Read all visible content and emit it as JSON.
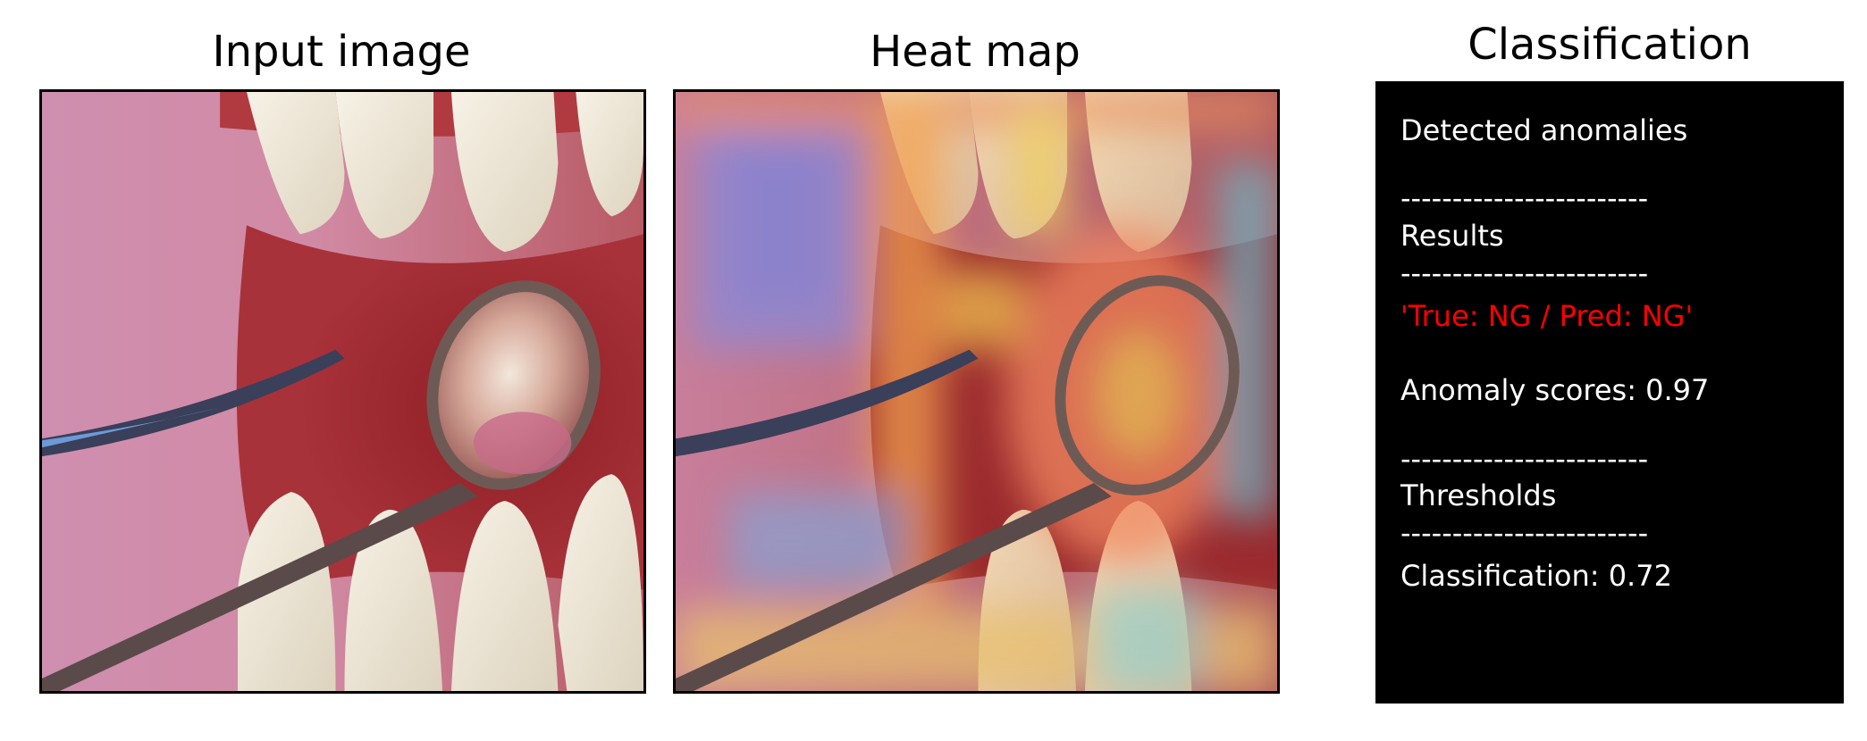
{
  "panels": {
    "input_title": "Input image",
    "heatmap_title": "Heat map",
    "classification_title": "Classification"
  },
  "classification": {
    "detected": "Detected anomalies",
    "sep": "------------------------",
    "results": "Results",
    "verdict": "'True: NG / Pred: NG'",
    "anomaly_score": "Anomaly scores: 0.97",
    "thresholds": "Thresholds",
    "classification_threshold": "Classification: 0.72"
  },
  "colors": {
    "verdict": "#ff0000",
    "panel_bg": "#000000"
  }
}
